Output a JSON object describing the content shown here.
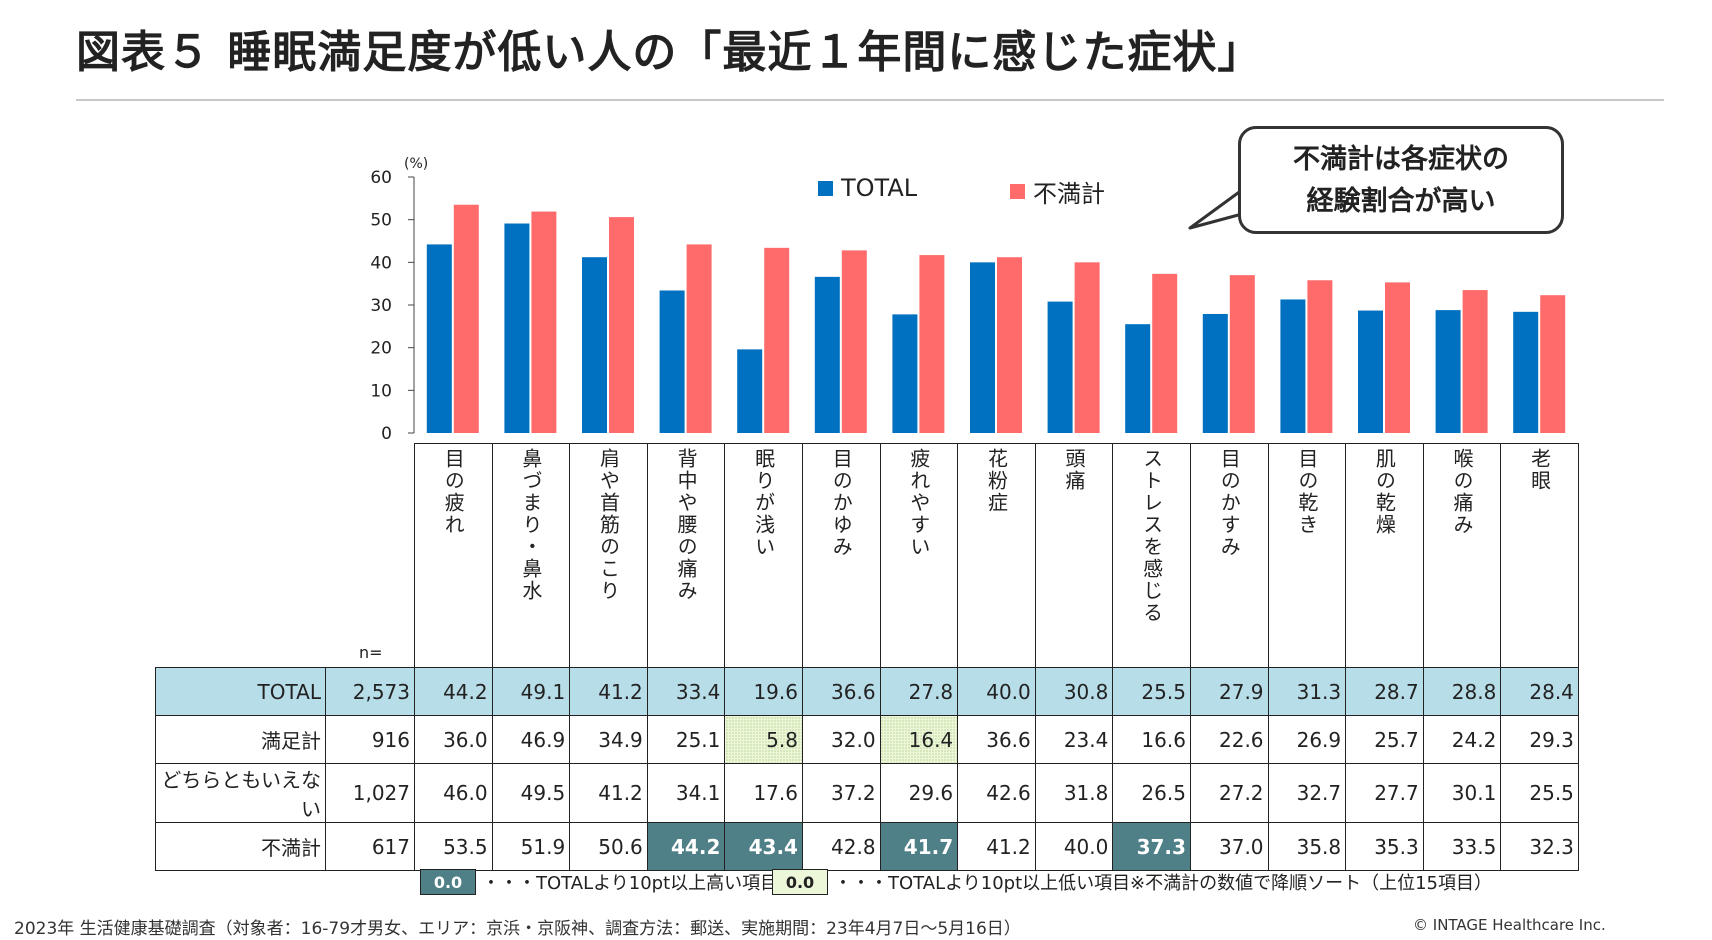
{
  "title": "図表５ 睡眠満足度が低い人の「最近１年間に感じた症状」",
  "unit_label": "(%)",
  "callout": {
    "line1": "不満計は各症状の",
    "line2": "経験割合が高い"
  },
  "n_label": "n=",
  "colors": {
    "total": "#0070c0",
    "dissatisfied": "#ff6b6b",
    "total_row_bg": "#b7dde8",
    "high": "#4f7f87",
    "low": "#ecf6d9"
  },
  "chart_data": {
    "type": "bar",
    "categories": [
      "目の疲れ",
      "鼻づまり・鼻水",
      "肩や首筋のこり",
      "背中や腰の痛み",
      "眠りが浅い",
      "目のかゆみ",
      "疲れやすい",
      "花粉症",
      "頭痛",
      "ストレスを感じる",
      "目のかすみ",
      "目の乾き",
      "肌の乾燥",
      "喉の痛み",
      "老眼"
    ],
    "series": [
      {
        "name": "TOTAL",
        "values": [
          44.2,
          49.1,
          41.2,
          33.4,
          19.6,
          36.6,
          27.8,
          40.0,
          30.8,
          25.5,
          27.9,
          31.3,
          28.7,
          28.8,
          28.4
        ]
      },
      {
        "name": "不満計",
        "values": [
          53.5,
          51.9,
          50.6,
          44.2,
          43.4,
          42.8,
          41.7,
          41.2,
          40.0,
          37.3,
          37.0,
          35.8,
          35.3,
          33.5,
          32.3
        ]
      }
    ],
    "ylim": [
      0,
      60
    ],
    "yticks": [
      "0",
      "10",
      "20",
      "30",
      "40",
      "50",
      "60"
    ],
    "legend": "top"
  },
  "table": {
    "rows": [
      {
        "label": "TOTAL",
        "n": "2,573",
        "values": [
          "44.2",
          "49.1",
          "41.2",
          "33.4",
          "19.6",
          "36.6",
          "27.8",
          "40.0",
          "30.8",
          "25.5",
          "27.9",
          "31.3",
          "28.7",
          "28.8",
          "28.4"
        ],
        "flags": [
          "",
          "",
          "",
          "",
          "",
          "",
          "",
          "",
          "",
          "",
          "",
          "",
          "",
          "",
          ""
        ]
      },
      {
        "label": "満足計",
        "n": "916",
        "values": [
          "36.0",
          "46.9",
          "34.9",
          "25.1",
          "5.8",
          "32.0",
          "16.4",
          "36.6",
          "23.4",
          "16.6",
          "22.6",
          "26.9",
          "25.7",
          "24.2",
          "29.3"
        ],
        "flags": [
          "",
          "",
          "",
          "",
          "lo",
          "",
          "lo",
          "",
          "",
          "",
          "",
          "",
          "",
          "",
          ""
        ]
      },
      {
        "label": "どちらともいえない",
        "n": "1,027",
        "values": [
          "46.0",
          "49.5",
          "41.2",
          "34.1",
          "17.6",
          "37.2",
          "29.6",
          "42.6",
          "31.8",
          "26.5",
          "27.2",
          "32.7",
          "27.7",
          "30.1",
          "25.5"
        ],
        "flags": [
          "",
          "",
          "",
          "",
          "",
          "",
          "",
          "",
          "",
          "",
          "",
          "",
          "",
          "",
          ""
        ]
      },
      {
        "label": "不満計",
        "n": "617",
        "values": [
          "53.5",
          "51.9",
          "50.6",
          "44.2",
          "43.4",
          "42.8",
          "41.7",
          "41.2",
          "40.0",
          "37.3",
          "37.0",
          "35.8",
          "35.3",
          "33.5",
          "32.3"
        ],
        "flags": [
          "",
          "",
          "",
          "hi",
          "hi",
          "",
          "hi",
          "",
          "",
          "hi",
          "",
          "",
          "",
          "",
          ""
        ]
      }
    ]
  },
  "key": {
    "hi_value": "0.0",
    "hi_text": "・・・TOTALより10pt以上高い項目",
    "lo_value": "0.0",
    "lo_text": "・・・TOTALより10pt以上低い項目",
    "note": "※不満計の数値で降順ソート（上位15項目）"
  },
  "footer": "2023年 生活健康基礎調査（対象者：16-79才男女、エリア：京浜・京阪神、調査方法：郵送、実施期間：23年4月7日～5月16日）",
  "copyright": "© INTAGE Healthcare Inc."
}
